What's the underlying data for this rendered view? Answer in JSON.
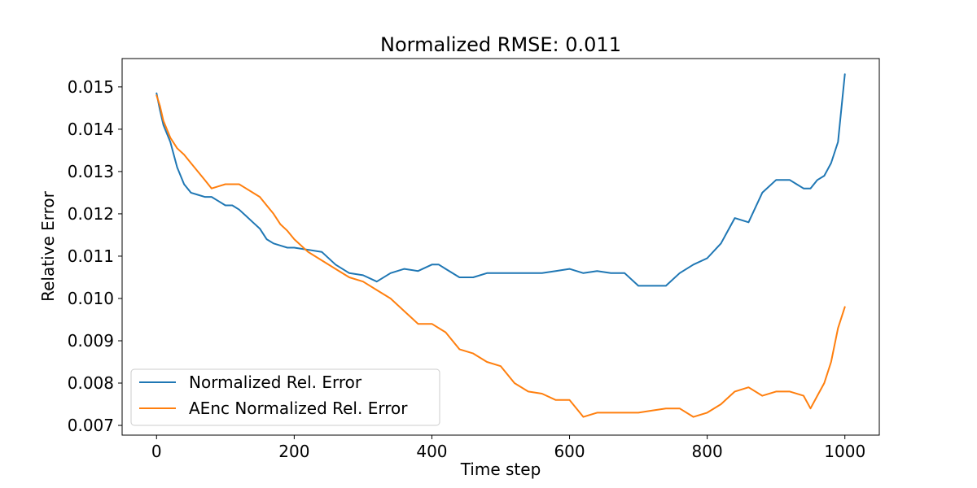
{
  "chart_data": {
    "type": "line",
    "title": "Normalized RMSE: 0.011",
    "xlabel": "Time step",
    "ylabel": "Relative Error",
    "xlim": [
      -50,
      1050
    ],
    "ylim": [
      0.00677,
      0.01567
    ],
    "xticks": [
      0,
      200,
      400,
      600,
      800,
      1000
    ],
    "xtick_labels": [
      "0",
      "200",
      "400",
      "600",
      "800",
      "1000"
    ],
    "yticks": [
      0.007,
      0.008,
      0.009,
      0.01,
      0.011,
      0.012,
      0.013,
      0.014,
      0.015
    ],
    "ytick_labels": [
      "0.007",
      "0.008",
      "0.009",
      "0.010",
      "0.011",
      "0.012",
      "0.013",
      "0.014",
      "0.015"
    ],
    "grid": false,
    "legend": "lower-left",
    "series": [
      {
        "name": "Normalized Rel. Error",
        "color": "#1f77b4",
        "x": [
          0,
          5,
          10,
          20,
          30,
          40,
          50,
          60,
          70,
          80,
          90,
          100,
          110,
          120,
          130,
          140,
          150,
          160,
          170,
          180,
          190,
          200,
          220,
          240,
          260,
          280,
          300,
          320,
          340,
          360,
          380,
          400,
          410,
          420,
          440,
          460,
          480,
          500,
          520,
          540,
          560,
          580,
          600,
          620,
          640,
          660,
          680,
          700,
          720,
          740,
          760,
          780,
          800,
          820,
          840,
          860,
          880,
          900,
          920,
          930,
          940,
          950,
          960,
          970,
          980,
          990,
          1000
        ],
        "y": [
          0.01485,
          0.01445,
          0.0141,
          0.0137,
          0.0131,
          0.0127,
          0.0125,
          0.01245,
          0.0124,
          0.0124,
          0.0123,
          0.0122,
          0.0122,
          0.0121,
          0.01195,
          0.0118,
          0.01165,
          0.0114,
          0.0113,
          0.01125,
          0.0112,
          0.0112,
          0.01115,
          0.0111,
          0.0108,
          0.0106,
          0.01055,
          0.0104,
          0.0106,
          0.0107,
          0.01065,
          0.0108,
          0.0108,
          0.0107,
          0.0105,
          0.0105,
          0.0106,
          0.0106,
          0.0106,
          0.0106,
          0.0106,
          0.01065,
          0.0107,
          0.0106,
          0.01065,
          0.0106,
          0.0106,
          0.0103,
          0.0103,
          0.0103,
          0.0106,
          0.0108,
          0.01095,
          0.0113,
          0.0119,
          0.0118,
          0.0125,
          0.0128,
          0.0128,
          0.0127,
          0.0126,
          0.0126,
          0.0128,
          0.0129,
          0.0132,
          0.0137,
          0.0153
        ]
      },
      {
        "name": "AEnc Normalized Rel. Error",
        "color": "#ff7f0e",
        "x": [
          0,
          5,
          10,
          20,
          30,
          40,
          50,
          60,
          70,
          80,
          90,
          100,
          110,
          120,
          130,
          140,
          150,
          160,
          170,
          180,
          190,
          200,
          220,
          240,
          260,
          280,
          300,
          320,
          340,
          360,
          380,
          400,
          420,
          440,
          460,
          480,
          500,
          520,
          540,
          560,
          580,
          600,
          620,
          640,
          660,
          680,
          700,
          720,
          740,
          760,
          780,
          800,
          820,
          840,
          860,
          880,
          900,
          920,
          940,
          950,
          960,
          970,
          980,
          990,
          1000
        ],
        "y": [
          0.0148,
          0.01455,
          0.0142,
          0.0138,
          0.01355,
          0.0134,
          0.0132,
          0.013,
          0.0128,
          0.0126,
          0.01265,
          0.0127,
          0.0127,
          0.0127,
          0.0126,
          0.0125,
          0.0124,
          0.0122,
          0.012,
          0.01175,
          0.0116,
          0.0114,
          0.0111,
          0.0109,
          0.0107,
          0.0105,
          0.0104,
          0.0102,
          0.01,
          0.0097,
          0.0094,
          0.0094,
          0.0092,
          0.0088,
          0.0087,
          0.0085,
          0.0084,
          0.008,
          0.0078,
          0.00775,
          0.0076,
          0.0076,
          0.0072,
          0.0073,
          0.0073,
          0.0073,
          0.0073,
          0.00735,
          0.0074,
          0.0074,
          0.0072,
          0.0073,
          0.0075,
          0.0078,
          0.0079,
          0.0077,
          0.0078,
          0.0078,
          0.0077,
          0.0074,
          0.0077,
          0.008,
          0.0085,
          0.0093,
          0.0098
        ]
      }
    ]
  }
}
